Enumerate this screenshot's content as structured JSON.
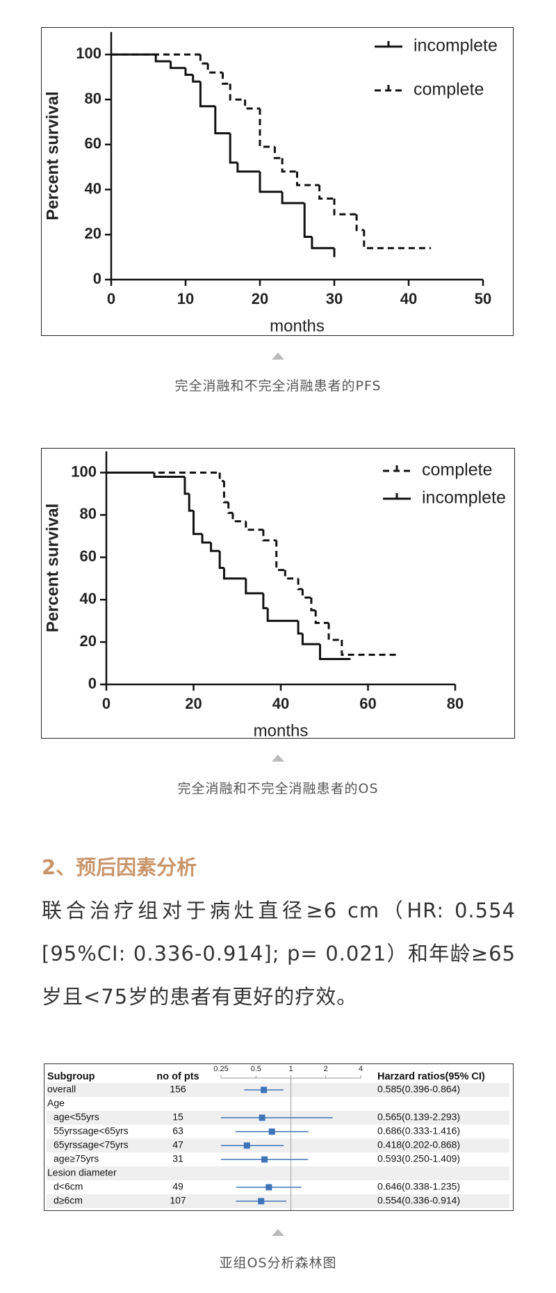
{
  "chart_data": [
    {
      "type": "line",
      "step": true,
      "xlabel": "months",
      "ylabel": "Percent survival",
      "xlim": [
        0,
        50
      ],
      "xticks": [
        0,
        10,
        20,
        30,
        40,
        50
      ],
      "ylim": [
        0,
        110
      ],
      "yticks": [
        0,
        20,
        40,
        60,
        80,
        100
      ],
      "legend": "top-right",
      "series": [
        {
          "name": "incomplete",
          "color": "#111111",
          "linestyle": "solid",
          "x": [
            0,
            6,
            8,
            10,
            11,
            12,
            14,
            16,
            17,
            20,
            23,
            26,
            27,
            30
          ],
          "values": [
            100,
            97,
            94,
            91,
            88,
            77,
            65,
            52,
            48,
            39,
            34,
            19,
            14,
            10
          ]
        },
        {
          "name": "complete",
          "color": "#111111",
          "linestyle": "dashed",
          "x": [
            0,
            12,
            13,
            15,
            16,
            18,
            20,
            22,
            23,
            25,
            28,
            30,
            33,
            34,
            43
          ],
          "values": [
            100,
            96,
            92,
            87,
            80,
            76,
            59,
            54,
            48,
            42,
            36,
            29,
            22,
            14,
            14
          ]
        }
      ]
    },
    {
      "type": "line",
      "step": true,
      "xlabel": "months",
      "ylabel": "Percent survival",
      "xlim": [
        0,
        80
      ],
      "xticks": [
        0,
        20,
        40,
        60,
        80
      ],
      "ylim": [
        0,
        110
      ],
      "yticks": [
        0,
        20,
        40,
        60,
        80,
        100
      ],
      "legend": "top-right",
      "series": [
        {
          "name": "complete",
          "color": "#111111",
          "linestyle": "dashed",
          "x": [
            0,
            26,
            27,
            28,
            29,
            32,
            36,
            39,
            41,
            44,
            45,
            47,
            48,
            51,
            54,
            67
          ],
          "values": [
            100,
            96,
            86,
            81,
            77,
            73,
            68,
            54,
            50,
            45,
            41,
            35,
            29,
            21,
            14,
            14
          ]
        },
        {
          "name": "incomplete",
          "color": "#111111",
          "linestyle": "solid",
          "x": [
            0,
            11,
            18,
            19,
            20,
            22,
            24,
            26,
            27,
            32,
            36,
            37,
            44,
            45,
            49,
            56
          ],
          "values": [
            100,
            98,
            90,
            82,
            71,
            67,
            63,
            55,
            50,
            43,
            36,
            30,
            24,
            19,
            12,
            12
          ]
        }
      ]
    },
    {
      "type": "forest",
      "column_headers": [
        "Subgroup",
        "no of pts",
        "Harzard ratios(95% CI)"
      ],
      "categories": [
        "overall",
        "Age",
        "age<55yrs",
        "55yrs≤age<65yrs",
        "65yrs≤age<75yrs",
        "age≥75yrs",
        "Lesion diameter",
        "d<6cm",
        "d≥6cm"
      ],
      "n": [
        156,
        null,
        15,
        63,
        47,
        31,
        null,
        49,
        107
      ],
      "values": [
        0.585,
        null,
        0.565,
        0.686,
        0.418,
        0.593,
        null,
        0.646,
        0.554
      ],
      "ci_low": [
        0.396,
        null,
        0.139,
        0.333,
        0.202,
        0.25,
        null,
        0.338,
        0.336
      ],
      "ci_high": [
        0.864,
        null,
        2.293,
        1.416,
        0.868,
        1.409,
        null,
        1.235,
        0.914
      ],
      "value_labels": [
        "0.585(0.396-0.864)",
        null,
        "0.565(0.139-2.293)",
        "0.686(0.333-1.416)",
        "0.418(0.202-0.868)",
        "0.593(0.250-1.409)",
        null,
        "0.646(0.338-1.235)",
        "0.554(0.336-0.914)"
      ],
      "xlim": [
        0.25,
        4
      ],
      "xticks": [
        0.25,
        0.5,
        1,
        2,
        4
      ],
      "log_scale": true,
      "ref_line": 1,
      "color": "#3d74b8"
    }
  ],
  "captions": [
    "完全消融和不完全消融患者的PFS",
    "完全消融和不完全消融患者的OS",
    "亚组OS分析森林图"
  ],
  "heading": "2、预后因素分析",
  "paragraph": "联合治疗组对于病灶直径≥6 cm（HR: 0.554 [95%CI: 0.336-0.914]; p= 0.021）和年龄≥65岁且<75岁的患者有更好的疗效。"
}
